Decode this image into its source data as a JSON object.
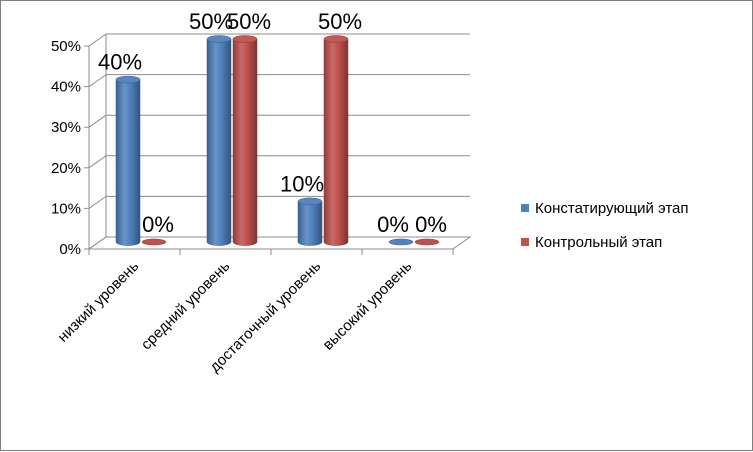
{
  "chart_data": {
    "type": "bar",
    "categories": [
      "низкий уровень",
      "средний уровень",
      "достаточный уровень",
      "высокий уровень"
    ],
    "series": [
      {
        "name": "Констатирующий этап",
        "values": [
          40,
          50,
          10,
          0
        ],
        "labels": [
          "40%",
          "50%",
          "10%",
          "0%"
        ],
        "color": "#4f81bd"
      },
      {
        "name": "Контрольный этап",
        "values": [
          0,
          50,
          50,
          0
        ],
        "labels": [
          "0%",
          "50%",
          "50%",
          "0%"
        ],
        "color": "#c0504d"
      }
    ],
    "yticks": [
      "0%",
      "10%",
      "20%",
      "30%",
      "40%",
      "50%"
    ],
    "ylim": [
      0,
      50
    ],
    "legend_position": "right",
    "grid": true
  }
}
